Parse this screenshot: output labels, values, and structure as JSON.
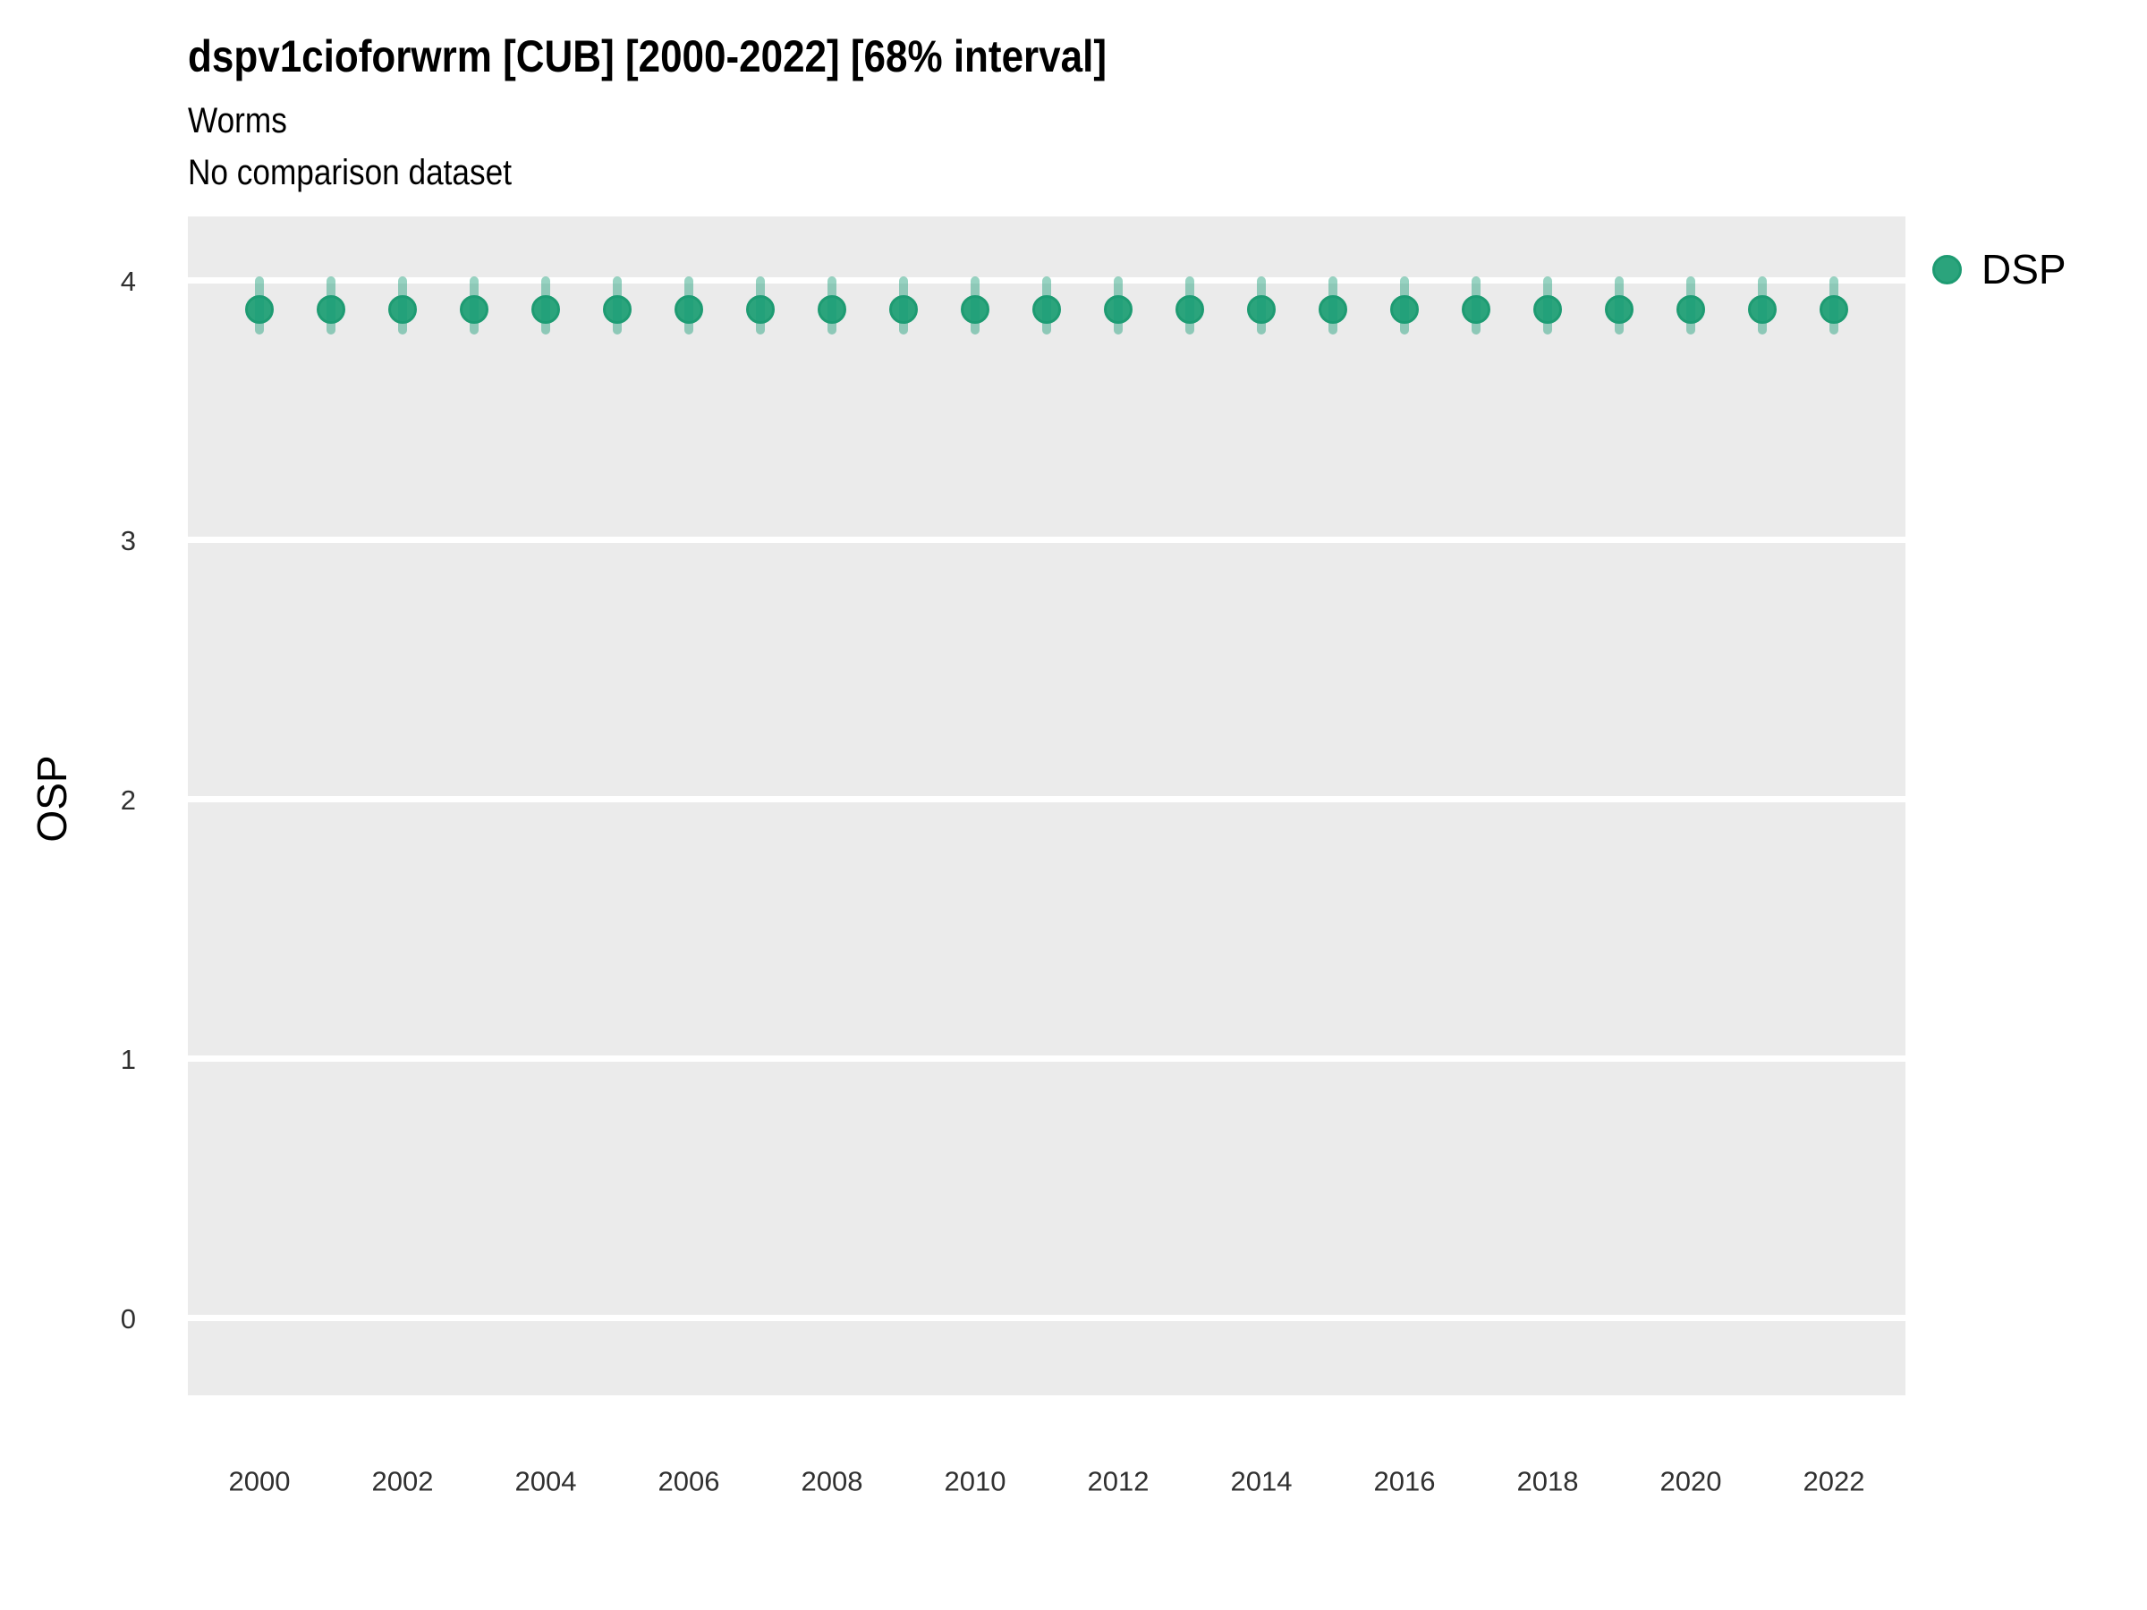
{
  "header": {
    "title": "dspv1cioforwrm [CUB] [2000-2022] [68% interval]",
    "subtitle1": "Worms",
    "subtitle2": "No comparison dataset"
  },
  "legend": {
    "position": "right",
    "items": [
      {
        "label": "DSP",
        "marker": "circle-icon",
        "color": "#2BA47C",
        "ring_color": "#1E9B72"
      }
    ]
  },
  "colors": {
    "panel_background": "#EBEBEB",
    "gridline": "#FFFFFF",
    "point_fill": "#2BA47C",
    "point_ring": "#1E9B72",
    "interval": "rgba(27,158,119,0.45)",
    "tick_label": "#303030",
    "text": "#000000"
  },
  "chart_data": {
    "type": "scatter",
    "subtype": "pointrange (point with 68% interval error bars)",
    "title": "dspv1cioforwrm [CUB] [2000-2022] [68% interval]",
    "subtitles": [
      "Worms",
      "No comparison dataset"
    ],
    "xlabel": "",
    "ylabel": "OSP",
    "x": [
      2000,
      2001,
      2002,
      2003,
      2004,
      2005,
      2006,
      2007,
      2008,
      2009,
      2010,
      2011,
      2012,
      2013,
      2014,
      2015,
      2016,
      2017,
      2018,
      2019,
      2020,
      2021,
      2022
    ],
    "series": [
      {
        "name": "DSP",
        "color": "#2BA47C",
        "values": [
          3.89,
          3.89,
          3.89,
          3.89,
          3.89,
          3.89,
          3.89,
          3.89,
          3.89,
          3.89,
          3.89,
          3.89,
          3.89,
          3.89,
          3.89,
          3.89,
          3.89,
          3.89,
          3.89,
          3.89,
          3.89,
          3.89,
          3.89
        ],
        "lower": [
          3.81,
          3.81,
          3.81,
          3.81,
          3.81,
          3.81,
          3.81,
          3.81,
          3.81,
          3.81,
          3.81,
          3.81,
          3.81,
          3.81,
          3.81,
          3.81,
          3.81,
          3.81,
          3.81,
          3.81,
          3.81,
          3.81,
          3.81
        ],
        "upper": [
          4.0,
          4.0,
          4.0,
          4.0,
          4.0,
          4.0,
          4.0,
          4.0,
          4.0,
          4.0,
          4.0,
          4.0,
          4.0,
          4.0,
          4.0,
          4.0,
          4.0,
          4.0,
          4.0,
          4.0,
          4.0,
          4.0,
          4.0
        ]
      }
    ],
    "xticks": [
      2000,
      2002,
      2004,
      2006,
      2008,
      2010,
      2012,
      2014,
      2016,
      2018,
      2020,
      2022
    ],
    "yticks": [
      0,
      1,
      2,
      3,
      4
    ],
    "xlim": [
      1999,
      2023
    ],
    "ylim": [
      -0.298,
      4.247
    ],
    "grid": true,
    "gridline_color": "#FFFFFF",
    "panel_background": "#EBEBEB",
    "legend_position": "right"
  }
}
